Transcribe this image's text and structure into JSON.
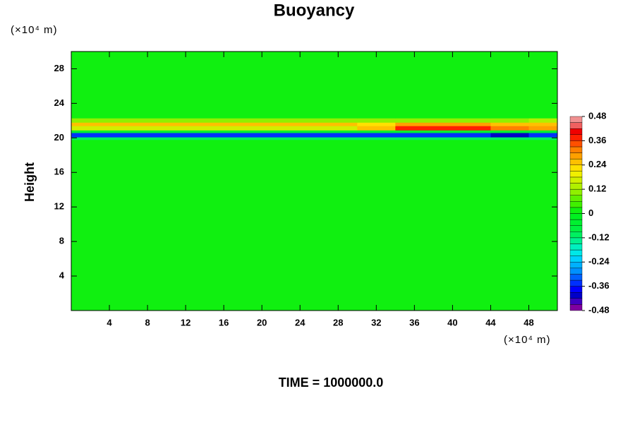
{
  "chart_data": {
    "type": "heatmap",
    "title": "Buoyancy",
    "ylabel": "Height",
    "xunit": "(×10⁴ m)",
    "yunit": "(×10⁴ m)",
    "annotation": "TIME = 1000000.0",
    "xlim": [
      0,
      51
    ],
    "ylim": [
      0,
      30
    ],
    "xticks": [
      4,
      8,
      12,
      16,
      20,
      24,
      28,
      32,
      36,
      40,
      44,
      48
    ],
    "yticks": [
      4,
      8,
      12,
      16,
      20,
      24,
      28
    ],
    "x": [
      0,
      30,
      34,
      44,
      48,
      51
    ],
    "y": [
      0,
      19.8,
      20.1,
      20.6,
      20.9,
      21.4,
      21.8,
      22.3,
      30
    ],
    "z": [
      [
        0,
        0,
        0,
        0,
        0
      ],
      [
        -0.12,
        -0.12,
        -0.12,
        -0.12,
        -0.12
      ],
      [
        -0.36,
        -0.36,
        -0.36,
        -0.39,
        -0.36
      ],
      [
        -0.06,
        -0.06,
        -0.06,
        -0.06,
        -0.06
      ],
      [
        0.18,
        0.24,
        0.36,
        0.3,
        0.27
      ],
      [
        0.24,
        0.21,
        0.27,
        0.24,
        0.24
      ],
      [
        0.09,
        0.09,
        0.09,
        0.09,
        0.12
      ],
      [
        0,
        0,
        0,
        0,
        0
      ]
    ],
    "clim": [
      -0.48,
      0.48
    ],
    "cticks": [
      -0.48,
      -0.36,
      -0.24,
      -0.12,
      0,
      0.12,
      0.24,
      0.36,
      0.48
    ],
    "colors": [
      "#8000a0",
      "#4000c0",
      "#0000c8",
      "#0000ff",
      "#0030ff",
      "#0060ff",
      "#0090ff",
      "#00b0ff",
      "#00d0ff",
      "#00e8e8",
      "#00f0c0",
      "#00f090",
      "#00f060",
      "#00f040",
      "#00f030",
      "#00f020",
      "#10f010",
      "#40f000",
      "#60f000",
      "#90f000",
      "#b0f000",
      "#d0f000",
      "#f0f000",
      "#ffe000",
      "#ffc000",
      "#ffa000",
      "#ff8000",
      "#ff5000",
      "#ff2000",
      "#f00000",
      "#f06060",
      "#f09090"
    ]
  }
}
